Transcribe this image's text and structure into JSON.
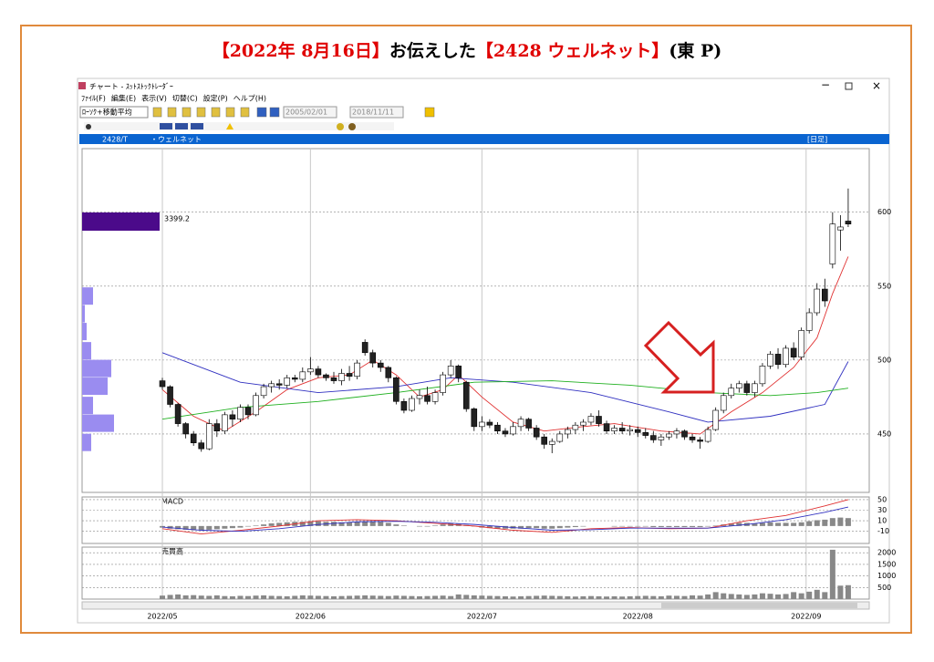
{
  "header": {
    "title_parts": [
      {
        "text": "【2022年 8月16日】",
        "color": "#e00000"
      },
      {
        "text": "お伝えした",
        "color": "#000000"
      },
      {
        "text": "【2428 ウェルネット】",
        "color": "#e00000"
      },
      {
        "text": "(東 P)",
        "color": "#000000"
      }
    ]
  },
  "window": {
    "title": "チャート - ｽｯﾄｽﾄｯｸﾄﾚｰﾀﾞｰ",
    "menu": [
      "ﾌｧｲﾙ(F)",
      "編集(E)",
      "表示(V)",
      "切替(C)",
      "設定(P)",
      "ヘルプ(H)"
    ],
    "chart_style": "ﾛｰｿｸ+移動平均",
    "date_from": "2005/02/01",
    "date_to": "2018/11/11",
    "code": "2428/T",
    "name": "・ウェルネット",
    "period": "[日足]"
  },
  "chart_data": [
    {
      "type": "candlestick",
      "xlim": [
        -10.3,
        90.7
      ],
      "ylim": [
        410.5,
        643
      ],
      "yticks": [
        450,
        500,
        550,
        600
      ],
      "xticks": [
        {
          "value": 0,
          "label": "2022/05"
        },
        {
          "value": 19,
          "label": "2022/06"
        },
        {
          "value": 41,
          "label": "2022/07"
        },
        {
          "value": 61,
          "label": "2022/08"
        },
        {
          "value": 82.6,
          "label": "2022/09"
        }
      ],
      "price_marker": "3399.2",
      "ohlc": [
        [
          486,
          488,
          480,
          482
        ],
        [
          482,
          483,
          468,
          470
        ],
        [
          470,
          471,
          455,
          457
        ],
        [
          457,
          458,
          447,
          450
        ],
        [
          450,
          452,
          442,
          444
        ],
        [
          444,
          446,
          438,
          440
        ],
        [
          440,
          460,
          439,
          457
        ],
        [
          457,
          460,
          448,
          452
        ],
        [
          452,
          465,
          450,
          463
        ],
        [
          463,
          466,
          455,
          460
        ],
        [
          460,
          470,
          458,
          468
        ],
        [
          468,
          470,
          460,
          463
        ],
        [
          463,
          478,
          462,
          476
        ],
        [
          476,
          484,
          474,
          482
        ],
        [
          482,
          486,
          478,
          484
        ],
        [
          484,
          487,
          480,
          483
        ],
        [
          483,
          490,
          481,
          488
        ],
        [
          488,
          490,
          485,
          487
        ],
        [
          487,
          495,
          485,
          492
        ],
        [
          492,
          502,
          490,
          494
        ],
        [
          494,
          496,
          488,
          490
        ],
        [
          490,
          491,
          486,
          488
        ],
        [
          488,
          492,
          484,
          486
        ],
        [
          486,
          494,
          483,
          491
        ],
        [
          491,
          496,
          486,
          489
        ],
        [
          489,
          500,
          487,
          498
        ],
        [
          512,
          514,
          503,
          505
        ],
        [
          505,
          507,
          495,
          498
        ],
        [
          498,
          500,
          492,
          495
        ],
        [
          495,
          496,
          485,
          488
        ],
        [
          488,
          489,
          470,
          472
        ],
        [
          472,
          474,
          464,
          466
        ],
        [
          466,
          476,
          465,
          474
        ],
        [
          474,
          480,
          470,
          476
        ],
        [
          476,
          482,
          470,
          472
        ],
        [
          472,
          480,
          470,
          478
        ],
        [
          478,
          492,
          476,
          490
        ],
        [
          490,
          500,
          488,
          496
        ],
        [
          496,
          497,
          485,
          488
        ],
        [
          485,
          486,
          465,
          467
        ],
        [
          467,
          468,
          452,
          455
        ],
        [
          455,
          462,
          452,
          458
        ],
        [
          458,
          460,
          454,
          456
        ],
        [
          456,
          458,
          450,
          452
        ],
        [
          452,
          454,
          448,
          450
        ],
        [
          450,
          458,
          449,
          455
        ],
        [
          455,
          462,
          452,
          460
        ],
        [
          460,
          461,
          452,
          454
        ],
        [
          454,
          456,
          446,
          448
        ],
        [
          448,
          450,
          440,
          443
        ],
        [
          443,
          447,
          437,
          445
        ],
        [
          445,
          452,
          444,
          450
        ],
        [
          450,
          455,
          447,
          453
        ],
        [
          453,
          458,
          450,
          456
        ],
        [
          456,
          460,
          452,
          458
        ],
        [
          458,
          464,
          456,
          462
        ],
        [
          462,
          466,
          455,
          457
        ],
        [
          457,
          459,
          450,
          452
        ],
        [
          452,
          456,
          450,
          454
        ],
        [
          454,
          458,
          450,
          452
        ],
        [
          452,
          456,
          449,
          453
        ],
        [
          453,
          455,
          448,
          451
        ],
        [
          451,
          454,
          447,
          449
        ],
        [
          449,
          452,
          444,
          446
        ],
        [
          446,
          450,
          442,
          448
        ],
        [
          448,
          452,
          446,
          450
        ],
        [
          450,
          454,
          447,
          452
        ],
        [
          452,
          453,
          446,
          448
        ],
        [
          448,
          450,
          444,
          446
        ],
        [
          446,
          448,
          440,
          445
        ],
        [
          445,
          455,
          444,
          453
        ],
        [
          453,
          468,
          452,
          466
        ],
        [
          466,
          478,
          464,
          476
        ],
        [
          476,
          484,
          474,
          481
        ],
        [
          481,
          486,
          478,
          484
        ],
        [
          484,
          486,
          476,
          478
        ],
        [
          478,
          486,
          475,
          484
        ],
        [
          484,
          498,
          482,
          496
        ],
        [
          496,
          506,
          494,
          504
        ],
        [
          504,
          508,
          494,
          497
        ],
        [
          497,
          510,
          495,
          508
        ],
        [
          508,
          512,
          500,
          502
        ],
        [
          502,
          522,
          500,
          520
        ],
        [
          520,
          535,
          518,
          532
        ],
        [
          532,
          552,
          530,
          548
        ],
        [
          548,
          555,
          536,
          540
        ],
        [
          565,
          600,
          562,
          592
        ],
        [
          588,
          598,
          574,
          590
        ],
        [
          594,
          616,
          590,
          592
        ]
      ],
      "lines": [
        {
          "color": "#e03030",
          "x": [
            0,
            4,
            8,
            12,
            16,
            20,
            24,
            27,
            30,
            33,
            36,
            38,
            41,
            45,
            49,
            54,
            58,
            64,
            69,
            73,
            77,
            81,
            84,
            86,
            88
          ],
          "values": [
            480,
            462,
            452,
            465,
            480,
            488,
            490,
            500,
            490,
            475,
            480,
            490,
            475,
            458,
            452,
            455,
            457,
            452,
            450,
            465,
            478,
            495,
            515,
            545,
            570
          ]
        },
        {
          "color": "#3030c0",
          "x": [
            0,
            10,
            20,
            30,
            37,
            45,
            55,
            65,
            70,
            78,
            85,
            88
          ],
          "values": [
            505,
            485,
            478,
            482,
            488,
            485,
            478,
            465,
            458,
            462,
            470,
            499
          ]
        },
        {
          "color": "#20b020",
          "x": [
            0,
            10,
            20,
            30,
            40,
            50,
            60,
            70,
            78,
            84,
            88
          ],
          "values": [
            460,
            468,
            472,
            478,
            485,
            486,
            483,
            478,
            476,
            478,
            481
          ]
        }
      ],
      "volume_profile": {
        "prices": [
          543,
          531,
          519,
          506,
          494,
          482,
          469,
          457,
          444
        ],
        "values": [
          12,
          3,
          5,
          10,
          32,
          28,
          12,
          35,
          10
        ]
      }
    },
    {
      "type": "macd",
      "label": "MACD",
      "ylim": [
        -33,
        55
      ],
      "yticks": [
        50,
        30,
        10,
        -10
      ],
      "values": [
        -3,
        -5,
        -6,
        -7,
        -8,
        -8,
        -7,
        -6,
        -5,
        -4,
        -3,
        -1,
        1,
        3,
        5,
        6,
        7,
        8,
        8,
        9,
        9,
        8,
        8,
        7,
        7,
        8,
        9,
        9,
        8,
        6,
        3,
        1,
        0,
        -1,
        -1,
        1,
        3,
        5,
        4,
        2,
        -1,
        -3,
        -4,
        -5,
        -5,
        -5,
        -5,
        -4,
        -4,
        -5,
        -5,
        -4,
        -3,
        -2,
        -1,
        0,
        0,
        0,
        -1,
        -1,
        -1,
        -1,
        -1,
        -2,
        -2,
        -2,
        -2,
        -2,
        -2,
        -2,
        -1,
        1,
        3,
        5,
        6,
        6,
        5,
        6,
        7,
        6,
        6,
        6,
        7,
        9,
        11,
        12,
        15,
        16,
        15
      ],
      "lines": [
        {
          "color": "#e03030",
          "x": [
            0,
            5,
            10,
            15,
            20,
            25,
            30,
            35,
            40,
            45,
            50,
            55,
            60,
            65,
            70,
            75,
            80,
            85,
            88
          ],
          "values": [
            -5,
            -15,
            -8,
            0,
            10,
            12,
            10,
            5,
            0,
            -8,
            -12,
            -5,
            -3,
            -5,
            -4,
            10,
            20,
            38,
            50
          ]
        },
        {
          "color": "#3030c0",
          "x": [
            0,
            5,
            10,
            15,
            20,
            25,
            30,
            35,
            40,
            45,
            50,
            55,
            60,
            65,
            70,
            75,
            80,
            85,
            88
          ],
          "values": [
            -2,
            -8,
            -10,
            -5,
            3,
            8,
            9,
            7,
            3,
            -3,
            -8,
            -7,
            -4,
            -4,
            -4,
            3,
            12,
            26,
            36
          ]
        }
      ]
    },
    {
      "type": "volume",
      "label": "売買高",
      "ylim": [
        0,
        2244
      ],
      "yticks": [
        2000,
        1500,
        1000,
        500
      ],
      "values": [
        150,
        180,
        200,
        160,
        170,
        150,
        140,
        160,
        130,
        120,
        140,
        130,
        150,
        160,
        140,
        130,
        120,
        140,
        160,
        150,
        140,
        130,
        120,
        130,
        140,
        150,
        160,
        150,
        140,
        130,
        150,
        140,
        130,
        120,
        130,
        140,
        150,
        130,
        200,
        180,
        160,
        150,
        140,
        130,
        120,
        110,
        120,
        130,
        140,
        150,
        140,
        130,
        120,
        110,
        120,
        130,
        120,
        110,
        120,
        110,
        120,
        130,
        140,
        130,
        120,
        150,
        140,
        130,
        160,
        150,
        200,
        300,
        250,
        220,
        200,
        180,
        200,
        250,
        230,
        200,
        220,
        300,
        250,
        320,
        400,
        300,
        2130,
        580,
        600
      ]
    }
  ]
}
